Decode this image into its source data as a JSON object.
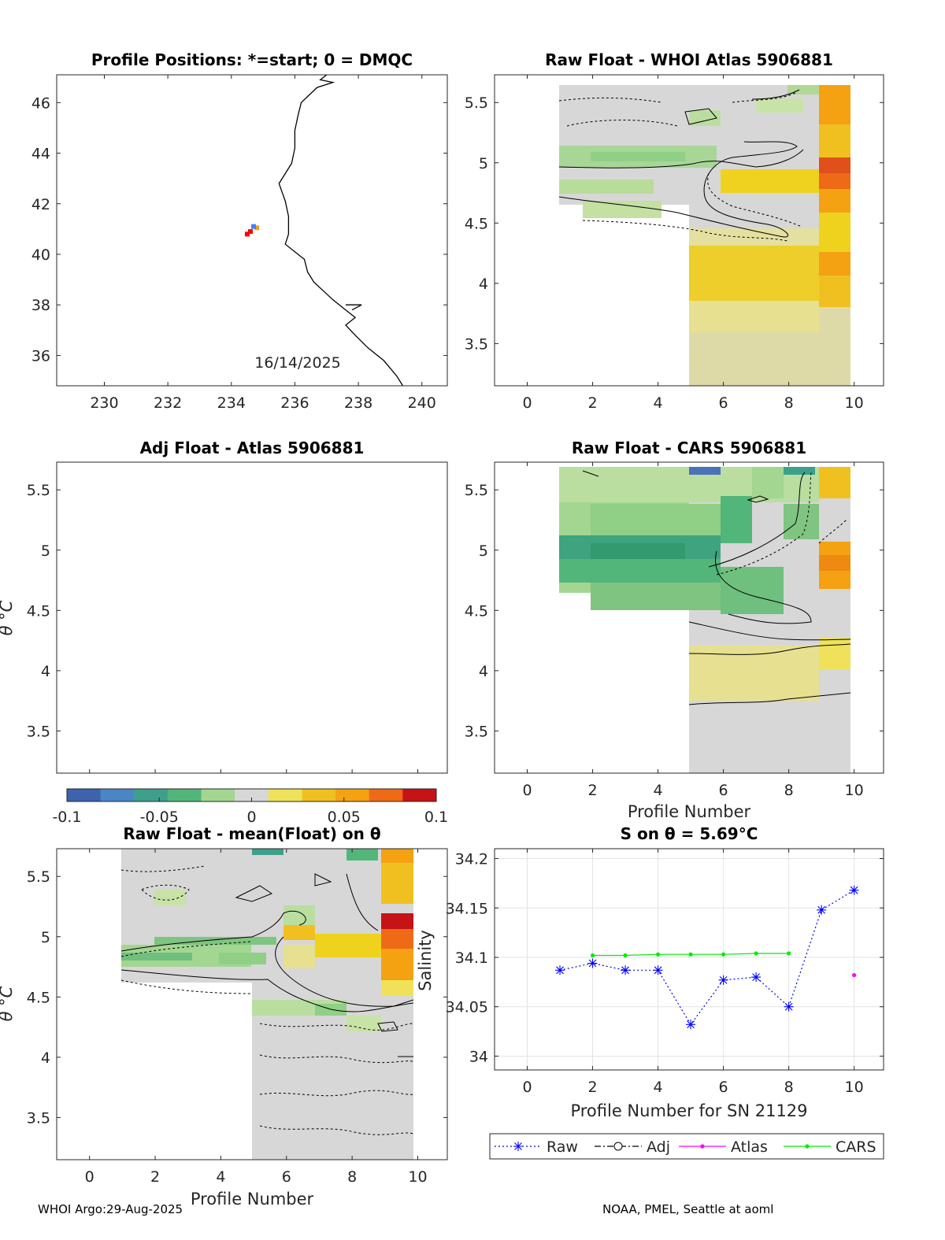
{
  "footer": {
    "left": "WHOI Argo:29-Aug-2025",
    "right": "NOAA, PMEL, Seattle at aoml"
  },
  "colorbar": {
    "ticks": [
      "-0.1",
      "-0.05",
      "0",
      "0.05",
      "0.1"
    ],
    "colors": [
      "#3e63ae",
      "#4a86c6",
      "#3ea08b",
      "#52b67a",
      "#a3d690",
      "#d7d7d7",
      "#efe25a",
      "#f0c020",
      "#f4a112",
      "#ee6a17",
      "#c61317"
    ]
  },
  "chart_data": [
    {
      "type": "scatter",
      "title": "Profile Positions: *=start; 0 = DMQC",
      "xticks": [
        "230",
        "232",
        "234",
        "236",
        "238",
        "240"
      ],
      "yticks": [
        "46",
        "44",
        "42",
        "40",
        "38",
        "36"
      ],
      "xlim": [
        228.5,
        240.8
      ],
      "ylim": [
        34.8,
        47.1
      ],
      "annotation": "16/14/2025",
      "points": [
        {
          "lon": 234.5,
          "lat": 40.8,
          "color": "#ff0000"
        },
        {
          "lon": 234.6,
          "lat": 40.9,
          "color": "#ff0000"
        },
        {
          "lon": 234.8,
          "lat": 41.05,
          "color": "#f0a020"
        },
        {
          "lon": 234.7,
          "lat": 41.1,
          "color": "#4080ff"
        }
      ],
      "coastline": [
        [
          237.0,
          47.1
        ],
        [
          236.8,
          46.9
        ],
        [
          237.2,
          46.8
        ],
        [
          236.7,
          46.6
        ],
        [
          236.2,
          46.0
        ],
        [
          236.1,
          45.5
        ],
        [
          236.0,
          44.9
        ],
        [
          236.0,
          44.2
        ],
        [
          235.9,
          43.6
        ],
        [
          235.5,
          42.8
        ],
        [
          235.7,
          42.1
        ],
        [
          235.8,
          41.5
        ],
        [
          235.8,
          40.8
        ],
        [
          235.7,
          40.4
        ],
        [
          236.3,
          39.8
        ],
        [
          236.4,
          39.3
        ],
        [
          236.6,
          38.9
        ],
        [
          237.2,
          38.2
        ],
        [
          237.6,
          37.8
        ],
        [
          237.9,
          37.5
        ],
        [
          237.6,
          37.2
        ],
        [
          237.9,
          36.8
        ],
        [
          238.3,
          36.3
        ],
        [
          238.8,
          35.8
        ],
        [
          239.2,
          35.2
        ],
        [
          239.4,
          34.8
        ]
      ],
      "coastline_inland": [
        [
          237.6,
          38.0
        ],
        [
          238.1,
          38.0
        ],
        [
          237.8,
          37.8
        ]
      ]
    },
    {
      "type": "heatmap",
      "title": "Raw Float - WHOI Atlas  5906881",
      "xticks": [
        "0",
        "2",
        "4",
        "6",
        "8",
        "10"
      ],
      "yticks": [
        "5.5",
        "5",
        "4.5",
        "4",
        "3.5"
      ],
      "xlim": [
        -1,
        10.9
      ],
      "ylim": [
        3.15,
        5.73
      ]
    },
    {
      "type": "heatmap",
      "title": "Adj Float - Atlas  5906881",
      "ylabel": "θ °C",
      "xticks": [],
      "yticks": [
        "5.5",
        "5",
        "4.5",
        "4",
        "3.5"
      ],
      "xlim": [
        -1,
        10.9
      ],
      "ylim": [
        3.15,
        5.73
      ]
    },
    {
      "type": "heatmap",
      "title": "Raw Float - CARS  5906881",
      "xlabel": "Profile Number",
      "xticks": [
        "0",
        "2",
        "4",
        "6",
        "8",
        "10"
      ],
      "yticks": [
        "5.5",
        "5",
        "4.5",
        "4",
        "3.5"
      ],
      "xlim": [
        -1,
        10.9
      ],
      "ylim": [
        3.15,
        5.73
      ]
    },
    {
      "type": "heatmap",
      "title": "Raw Float - mean(Float) on θ",
      "xlabel": "Profile Number",
      "ylabel": "θ °C",
      "xticks": [
        "0",
        "2",
        "4",
        "6",
        "8",
        "10"
      ],
      "yticks": [
        "5.5",
        "5",
        "4.5",
        "4",
        "3.5"
      ],
      "xlim": [
        -1,
        10.9
      ],
      "ylim": [
        3.15,
        5.73
      ]
    },
    {
      "type": "line",
      "title": "S on θ = 5.69°C",
      "xlabel": "Profile Number for SN 21129",
      "ylabel": "Salinity",
      "xticks": [
        "0",
        "2",
        "4",
        "6",
        "8",
        "10"
      ],
      "yticks": [
        "34.2",
        "34.15",
        "34.1",
        "34.05",
        "34"
      ],
      "xlim": [
        -1,
        10.9
      ],
      "ylim": [
        33.986,
        34.21
      ],
      "legend": [
        "Raw",
        "Adj",
        "Atlas",
        "CARS"
      ],
      "series": [
        {
          "name": "Raw",
          "x": [
            1,
            2,
            3,
            4,
            5,
            6,
            7,
            8,
            9,
            10
          ],
          "y": [
            34.087,
            34.094,
            34.087,
            34.087,
            34.032,
            34.077,
            34.08,
            34.05,
            34.148,
            34.168
          ]
        },
        {
          "name": "Atlas",
          "x": [
            10
          ],
          "y": [
            34.082
          ]
        },
        {
          "name": "CARS",
          "x": [
            2,
            3,
            4,
            5,
            6,
            7,
            8
          ],
          "y": [
            34.102,
            34.102,
            34.103,
            34.103,
            34.103,
            34.104,
            34.104
          ]
        }
      ]
    }
  ]
}
